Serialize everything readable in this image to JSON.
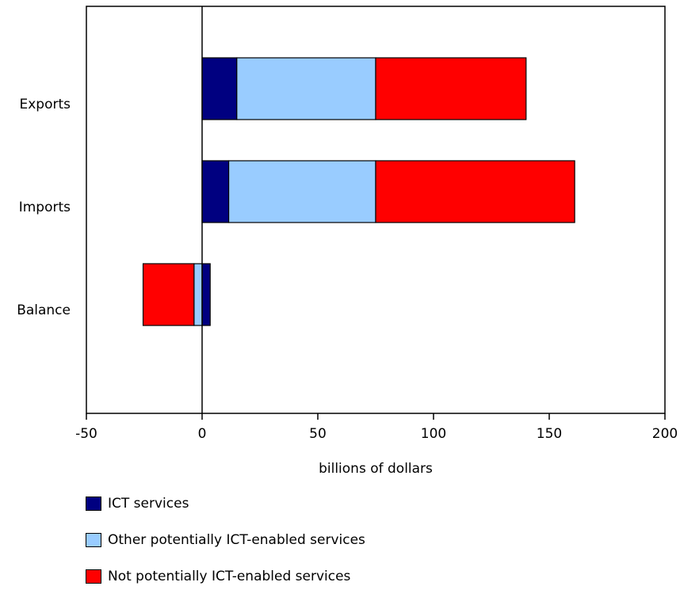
{
  "chart_data": {
    "type": "bar",
    "orientation": "horizontal",
    "stacked": true,
    "categories": [
      "Exports",
      "Imports",
      "Balance"
    ],
    "series": [
      {
        "name": "ICT services",
        "color": "#000080",
        "values": [
          15,
          11.5,
          3.5
        ]
      },
      {
        "name": "Other potentially ICT-enabled services",
        "color": "#99ccff",
        "values": [
          60,
          63.5,
          -3.5
        ]
      },
      {
        "name": "Not potentially ICT-enabled services",
        "color": "#ff0000",
        "values": [
          65,
          86,
          -22
        ]
      }
    ],
    "xlabel": "billions of dollars",
    "ylabel": "",
    "xlim": [
      -50,
      200
    ],
    "xticks": [
      -50,
      0,
      50,
      100,
      150,
      200
    ],
    "grid": false,
    "legend_position": "bottom"
  },
  "legend": {
    "items": [
      {
        "label": "ICT services",
        "color": "#000080",
        "icon": "square-swatch"
      },
      {
        "label": "Other potentially ICT-enabled services",
        "color": "#99ccff",
        "icon": "square-swatch"
      },
      {
        "label": "Not potentially ICT-enabled services",
        "color": "#ff0000",
        "icon": "square-swatch"
      }
    ]
  }
}
